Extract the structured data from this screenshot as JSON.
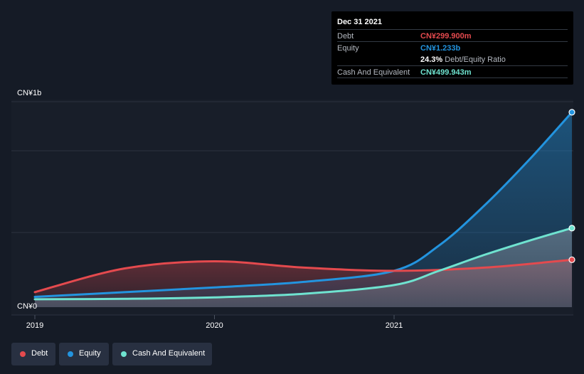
{
  "tooltip": {
    "date": "Dec 31 2021",
    "debt_label": "Debt",
    "debt_value": "CN¥299.900m",
    "equity_label": "Equity",
    "equity_value": "CN¥1.233b",
    "ratio_value": "24.3%",
    "ratio_label": "Debt/Equity Ratio",
    "cash_label": "Cash And Equivalent",
    "cash_value": "CN¥499.943m"
  },
  "colors": {
    "debt": "#e44a4e",
    "equity": "#2394df",
    "cash": "#6fe3d0"
  },
  "chart_data": {
    "type": "area",
    "y_top_label": "CN¥1b",
    "y_bottom_label": "CN¥0",
    "x_tick_labels": [
      "2019",
      "2020",
      "2021"
    ],
    "x_ticks": [
      2019,
      2020,
      2021
    ],
    "xlim": [
      2019,
      2021.99
    ],
    "ylim": [
      0,
      1300
    ],
    "unit": "CN¥ m",
    "series": [
      {
        "name": "Debt",
        "x": [
          2019.0,
          2019.5,
          2020.0,
          2020.5,
          2021.0,
          2021.5,
          2021.99
        ],
        "values": [
          95,
          245,
          290,
          250,
          230,
          250,
          299.9
        ]
      },
      {
        "name": "Equity",
        "x": [
          2019.0,
          2019.5,
          2020.0,
          2020.5,
          2021.0,
          2021.25,
          2021.5,
          2021.75,
          2021.99
        ],
        "values": [
          65,
          95,
          125,
          160,
          230,
          390,
          640,
          930,
          1233
        ]
      },
      {
        "name": "Cash And Equivalent",
        "x": [
          2019.0,
          2019.5,
          2020.0,
          2020.5,
          2021.0,
          2021.25,
          2021.5,
          2021.75,
          2021.99
        ],
        "values": [
          50,
          53,
          62,
          85,
          140,
          230,
          330,
          420,
          499.943
        ]
      }
    ]
  },
  "legend": [
    {
      "label": "Debt",
      "color": "#e44a4e"
    },
    {
      "label": "Equity",
      "color": "#2394df"
    },
    {
      "label": "Cash And Equivalent",
      "color": "#6fe3d0"
    }
  ]
}
